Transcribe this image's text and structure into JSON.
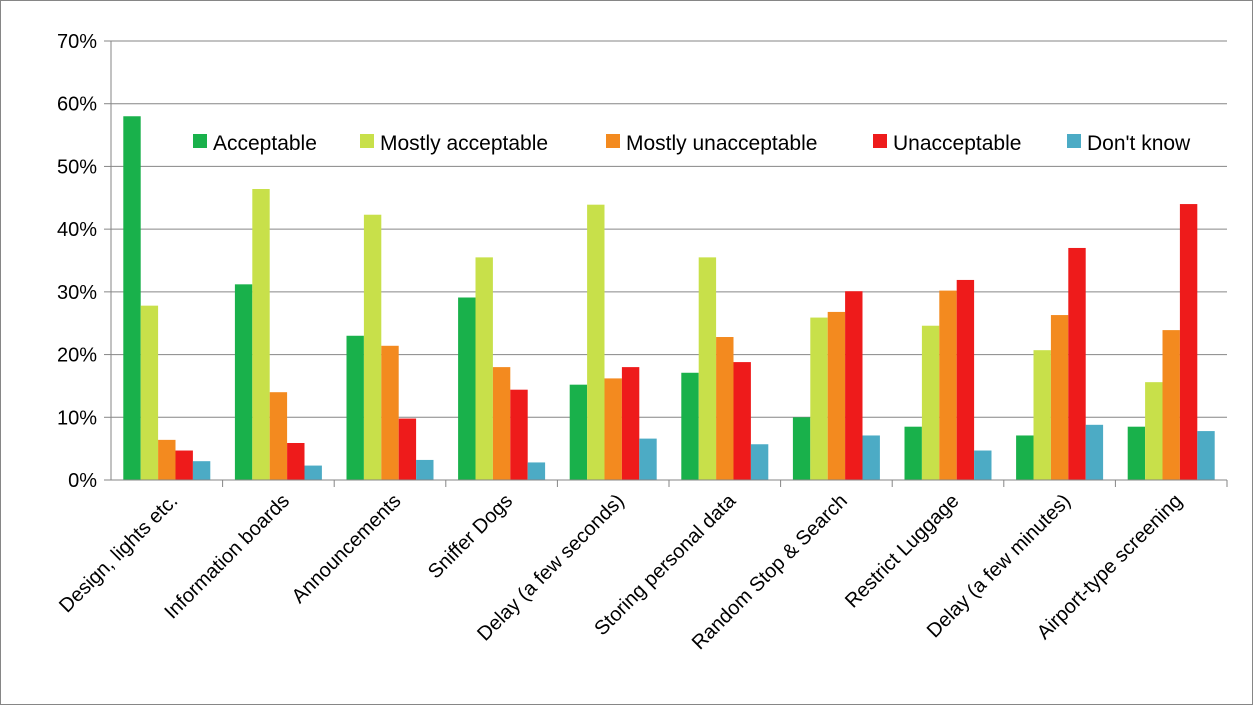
{
  "chart_data": {
    "type": "bar",
    "categories": [
      "Design, lights etc.",
      "Information boards",
      "Announcements",
      "Sniffer Dogs",
      "Delay (a few seconds)",
      "Storing personal data",
      "Random Stop & Search",
      "Restrict Luggage",
      "Delay (a few minutes)",
      "Airport-type screening"
    ],
    "series": [
      {
        "name": "Acceptable",
        "color": "#19b14b",
        "values": [
          58,
          31.2,
          23,
          29.1,
          15.2,
          17.1,
          10,
          8.5,
          7.1,
          8.5
        ]
      },
      {
        "name": "Mostly acceptable",
        "color": "#c8e04a",
        "values": [
          27.8,
          46.4,
          42.3,
          35.5,
          43.9,
          35.5,
          25.9,
          24.6,
          20.7,
          15.6
        ]
      },
      {
        "name": "Mostly unacceptable",
        "color": "#f38a1f",
        "values": [
          6.4,
          14,
          21.4,
          18,
          16.2,
          22.8,
          26.8,
          30.2,
          26.3,
          23.9
        ]
      },
      {
        "name": "Unacceptable",
        "color": "#ee1b1b",
        "values": [
          4.7,
          5.9,
          9.8,
          14.4,
          18,
          18.8,
          30.1,
          31.9,
          37,
          44
        ]
      },
      {
        "name": "Don't know",
        "color": "#4cabc5",
        "values": [
          3,
          2.3,
          3.2,
          2.8,
          6.6,
          5.7,
          7.1,
          4.7,
          8.8,
          7.8
        ]
      }
    ],
    "yticks": [
      "0%",
      "10%",
      "20%",
      "30%",
      "40%",
      "50%",
      "60%",
      "70%"
    ],
    "ylim": [
      0,
      70
    ],
    "ytick_step": 10,
    "grid": true,
    "legend": "top-right",
    "title": "",
    "xlabel": "",
    "ylabel": ""
  }
}
